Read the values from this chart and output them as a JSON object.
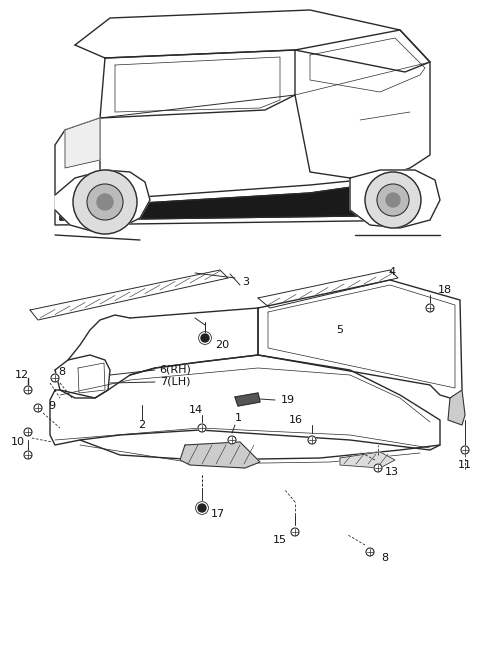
{
  "bg_color": "#ffffff",
  "fig_width": 4.8,
  "fig_height": 6.58,
  "dpi": 100,
  "line_color": "#2a2a2a",
  "text_color": "#111111",
  "font_size": 8.0
}
